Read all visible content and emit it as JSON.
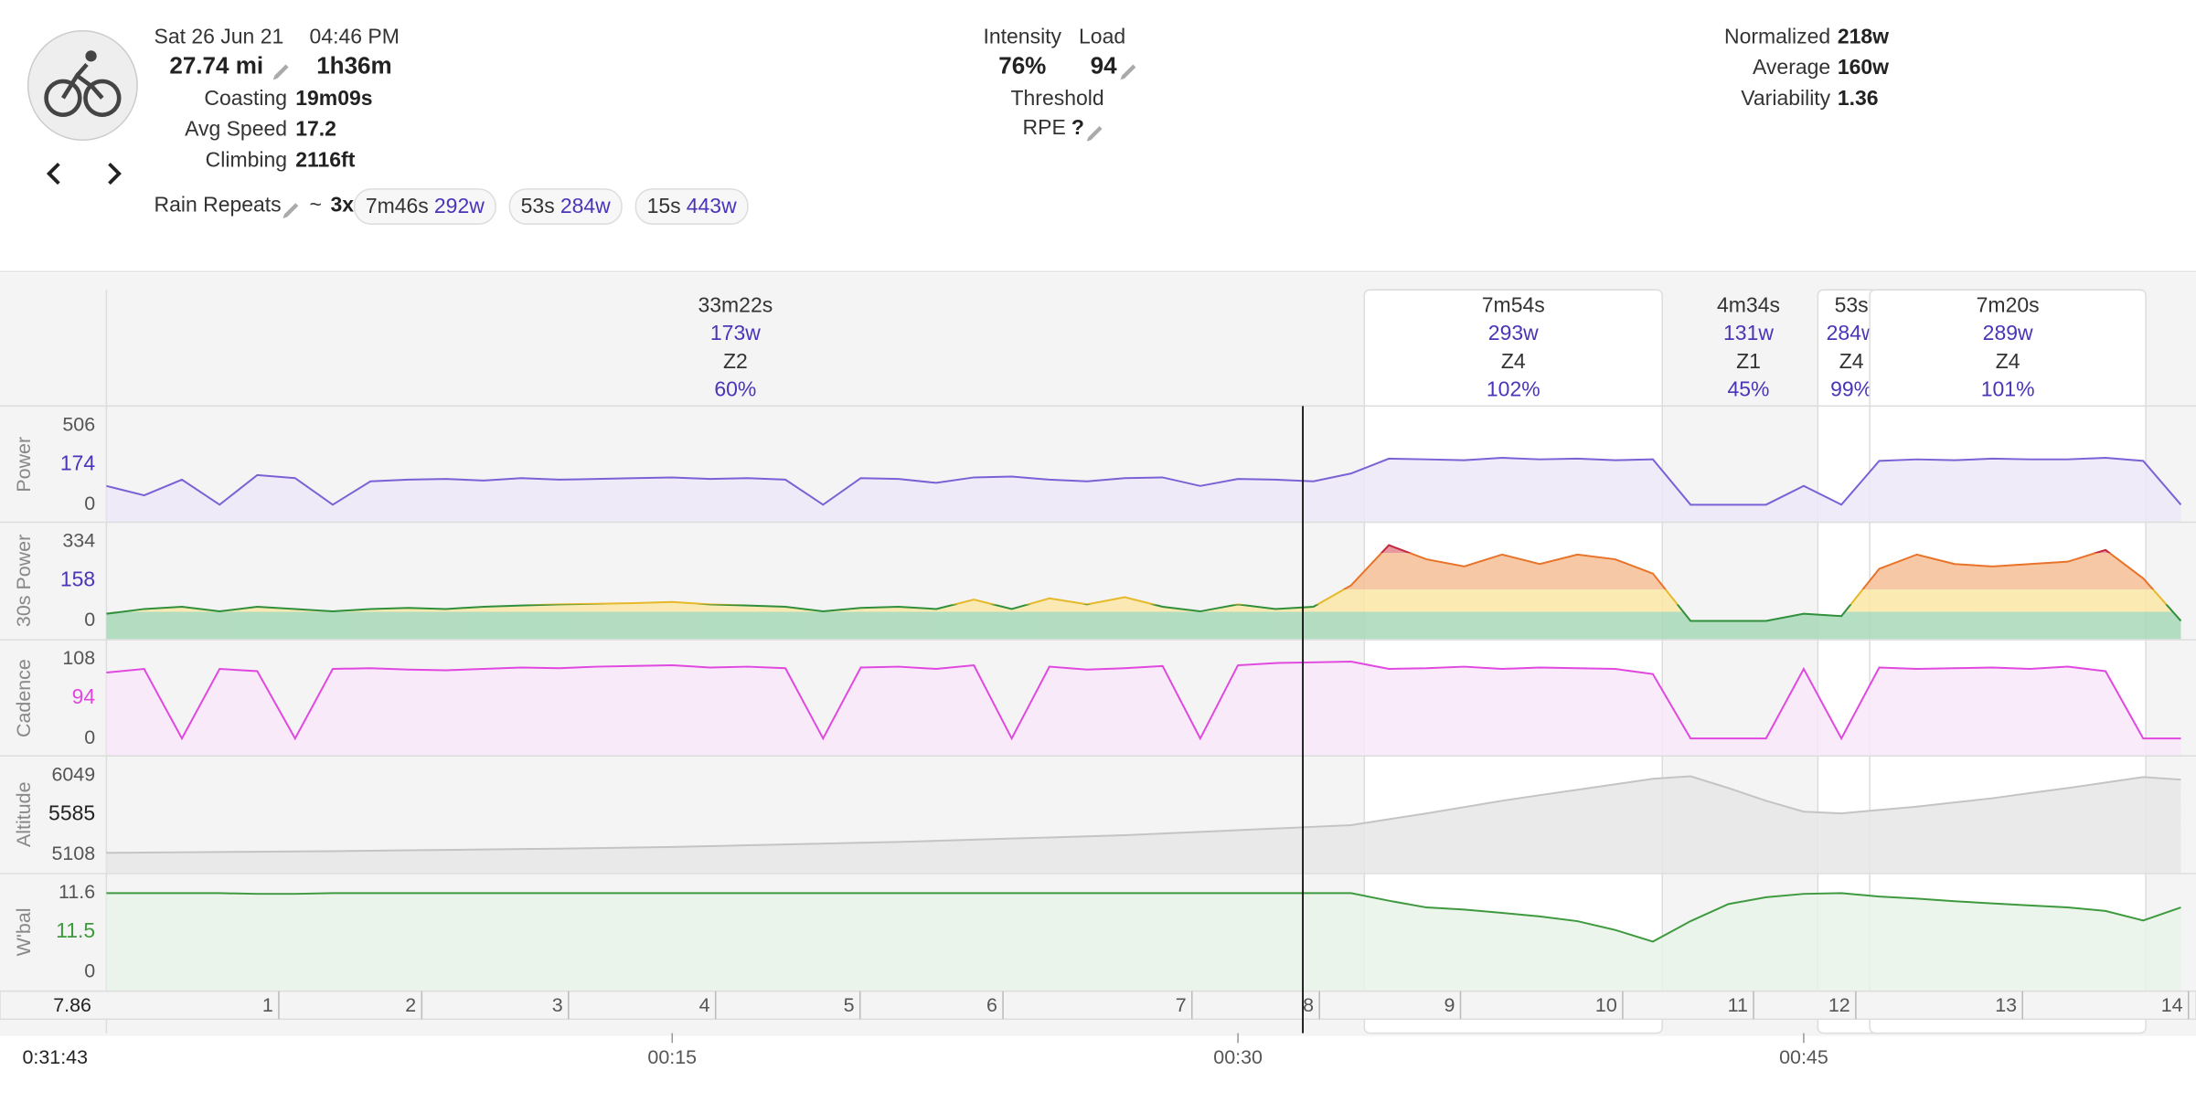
{
  "header": {
    "date": "Sat 26 Jun 21",
    "time": "04:46 PM",
    "distance": "27.74 mi",
    "duration": "1h36m",
    "stats": [
      {
        "label": "Coasting",
        "value": "19m09s"
      },
      {
        "label": "Avg Speed",
        "value": "17.2"
      },
      {
        "label": "Climbing",
        "value": "2116ft"
      }
    ],
    "intensity": {
      "label": "Intensity",
      "value": "76%"
    },
    "load": {
      "label": "Load",
      "value": "94"
    },
    "threshold": "Threshold",
    "rpe": {
      "label": "RPE",
      "value": "?"
    },
    "power_stats": [
      {
        "label": "Normalized",
        "value": "218w"
      },
      {
        "label": "Average",
        "value": "160w"
      },
      {
        "label": "Variability",
        "value": "1.36"
      }
    ]
  },
  "intervals": {
    "name": "Rain Repeats",
    "prefix": "~",
    "count": "3x",
    "chips": [
      {
        "duration": "7m46s",
        "power": "292w"
      },
      {
        "duration": "53s",
        "power": "284w"
      },
      {
        "duration": "15s",
        "power": "443w"
      }
    ],
    "segments": [
      {
        "duration": "33m22s",
        "power": "173w",
        "zone": "Z2",
        "percent": "60%",
        "start": 0,
        "end": 33.35,
        "selected": false
      },
      {
        "duration": "7m54s",
        "power": "293w",
        "zone": "Z4",
        "percent": "102%",
        "start": 33.35,
        "end": 41.25,
        "selected": true
      },
      {
        "duration": "4m34s",
        "power": "131w",
        "zone": "Z1",
        "percent": "45%",
        "start": 41.25,
        "end": 45.82,
        "selected": false
      },
      {
        "duration": "53s",
        "power": "284w",
        "zone": "Z4",
        "percent": "99%",
        "start": 45.82,
        "end": 46.71,
        "selected": true
      },
      {
        "duration": "7m20s",
        "power": "289w",
        "zone": "Z4",
        "percent": "101%",
        "start": 46.75,
        "end": 54.07,
        "selected": true
      }
    ]
  },
  "timeline": {
    "xlim": [
      0,
      55.4
    ],
    "xticks": [
      {
        "value": 15,
        "label": "00:15"
      },
      {
        "value": 30,
        "label": "00:30"
      },
      {
        "value": 45,
        "label": "00:45"
      }
    ],
    "cursor": {
      "value": 31.72,
      "label": "0:31:43"
    },
    "x": [
      0,
      1,
      2,
      3,
      4,
      5,
      6,
      7,
      8,
      9,
      10,
      11,
      12,
      13,
      14,
      15,
      16,
      17,
      18,
      19,
      20,
      21,
      22,
      23,
      24,
      25,
      26,
      27,
      28,
      29,
      30,
      31,
      32,
      33,
      34,
      35,
      36,
      37,
      38,
      39,
      40,
      41,
      42,
      43,
      44,
      45,
      46,
      47,
      48,
      49,
      50,
      51,
      52,
      53,
      54,
      55
    ],
    "distance": {
      "cursor": 7.86,
      "markers": [
        1,
        2,
        3,
        4,
        5,
        6,
        7,
        8,
        9,
        10,
        11,
        12,
        13,
        14
      ],
      "marker_times": [
        4.57,
        8.36,
        12.25,
        16.15,
        19.98,
        23.77,
        28.78,
        32.16,
        35.9,
        40.2,
        43.67,
        46.38,
        50.8,
        55.2
      ]
    },
    "panels": [
      {
        "name": "Power",
        "color": "#7b61d6",
        "fill": "#ece8f8",
        "ylim": [
          0,
          506
        ],
        "yticks": [
          0,
          506
        ],
        "cursor": 174,
        "values": [
          120,
          60,
          160,
          0,
          190,
          170,
          0,
          150,
          160,
          165,
          155,
          170,
          160,
          165,
          170,
          175,
          165,
          170,
          160,
          0,
          170,
          165,
          140,
          175,
          180,
          160,
          150,
          170,
          175,
          120,
          165,
          160,
          150,
          200,
          295,
          290,
          285,
          300,
          290,
          295,
          285,
          290,
          0,
          0,
          0,
          120,
          0,
          280,
          290,
          285,
          295,
          290,
          290,
          300,
          280,
          0
        ]
      },
      {
        "name": "30s Power",
        "color": "#2f8f3a",
        "fill": "zones",
        "ylim": [
          0,
          334
        ],
        "yticks": [
          0,
          334
        ],
        "cursor": 158,
        "values": [
          30,
          50,
          60,
          40,
          60,
          50,
          40,
          50,
          55,
          50,
          60,
          65,
          70,
          72,
          75,
          80,
          70,
          65,
          60,
          40,
          55,
          60,
          50,
          90,
          50,
          95,
          70,
          100,
          60,
          40,
          70,
          50,
          60,
          150,
          320,
          260,
          230,
          280,
          240,
          280,
          260,
          200,
          0,
          0,
          0,
          30,
          20,
          220,
          280,
          240,
          230,
          240,
          250,
          300,
          180,
          0
        ]
      },
      {
        "name": "Cadence",
        "color": "#e048e0",
        "fill": "#f8e8f8",
        "ylim": [
          0,
          108
        ],
        "yticks": [
          0,
          108
        ],
        "cursor": 94,
        "values": [
          90,
          95,
          0,
          95,
          92,
          0,
          95,
          96,
          94,
          93,
          95,
          97,
          96,
          98,
          99,
          100,
          97,
          98,
          96,
          0,
          97,
          98,
          95,
          100,
          0,
          98,
          94,
          96,
          99,
          0,
          100,
          103,
          104,
          105,
          95,
          96,
          98,
          95,
          97,
          96,
          95,
          88,
          0,
          0,
          0,
          95,
          0,
          97,
          95,
          96,
          97,
          95,
          98,
          92,
          0,
          0
        ]
      },
      {
        "name": "Altitude",
        "color": "#c4c4c4",
        "fill": "#e6e6e6",
        "ylim": [
          5108,
          6049
        ],
        "yticks": [
          5108,
          6049
        ],
        "cursor": 5585,
        "values": [
          5130,
          5133,
          5137,
          5140,
          5143,
          5147,
          5150,
          5155,
          5160,
          5165,
          5170,
          5175,
          5180,
          5187,
          5193,
          5200,
          5210,
          5220,
          5230,
          5240,
          5250,
          5260,
          5273,
          5287,
          5300,
          5313,
          5327,
          5340,
          5360,
          5380,
          5400,
          5420,
          5440,
          5460,
          5530,
          5600,
          5675,
          5750,
          5815,
          5880,
          5945,
          6010,
          6040,
          5900,
          5750,
          5620,
          5600,
          5640,
          5680,
          5730,
          5780,
          5840,
          5900,
          5965,
          6030,
          6000
        ]
      },
      {
        "name": "W'bal",
        "color": "#3f9a3f",
        "fill": "#e8f3e8",
        "ylim": [
          0,
          11.6
        ],
        "yticks": [
          0,
          11.6
        ],
        "cursor": 11.5,
        "values": [
          11.6,
          11.6,
          11.6,
          11.6,
          11.5,
          11.5,
          11.6,
          11.6,
          11.6,
          11.6,
          11.6,
          11.6,
          11.6,
          11.6,
          11.6,
          11.6,
          11.6,
          11.6,
          11.6,
          11.6,
          11.6,
          11.6,
          11.6,
          11.6,
          11.6,
          11.6,
          11.6,
          11.6,
          11.6,
          11.6,
          11.6,
          11.6,
          11.6,
          11.6,
          10.5,
          9.5,
          9.2,
          8.7,
          8.2,
          7.5,
          6.2,
          4.5,
          7.5,
          10,
          11,
          11.5,
          11.6,
          11.1,
          10.8,
          10.4,
          10.1,
          9.8,
          9.5,
          9,
          7.6,
          9.5
        ]
      }
    ]
  }
}
